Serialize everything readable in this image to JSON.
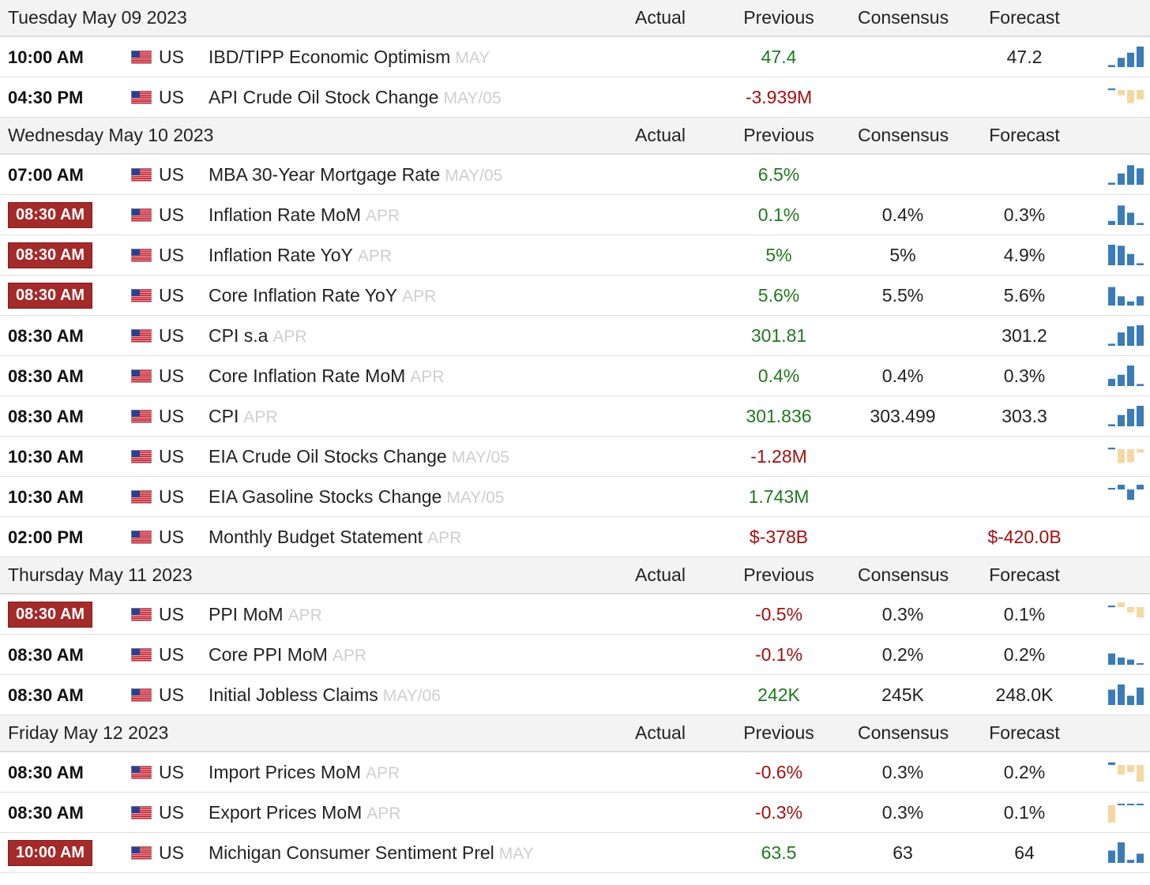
{
  "colors": {
    "positive": "#1f7a1f",
    "negative": "#a30f0f",
    "badge": "#a52a2a",
    "spark_blue": "#3a7bb8",
    "spark_tan": "#f5d7a3"
  },
  "sections": [
    {
      "date": "Tuesday May 09 2023",
      "headers": {
        "actual": "Actual",
        "previous": "Previous",
        "consensus": "Consensus",
        "forecast": "Forecast"
      },
      "rows": [
        {
          "time": "10:00 AM",
          "highlight": false,
          "country": "US",
          "event": "IBD/TIPP Economic Optimism",
          "ref": "MAY",
          "actual": "",
          "previous": "47.4",
          "previous_color": "positive",
          "consensus": "",
          "forecast": "47.2",
          "forecast_color": "",
          "spark": {
            "color": "blue",
            "bars": [
              0.1,
              0.45,
              0.7,
              1.0
            ]
          }
        },
        {
          "time": "04:30 PM",
          "highlight": false,
          "country": "US",
          "event": "API Crude Oil Stock Change",
          "ref": "MAY/05",
          "actual": "",
          "previous": "-3.939M",
          "previous_color": "negative",
          "consensus": "",
          "forecast": "",
          "forecast_color": "",
          "spark": {
            "color": "tan",
            "bars": [
              0.1,
              -0.3,
              -0.75,
              -0.55
            ]
          }
        }
      ]
    },
    {
      "date": "Wednesday May 10 2023",
      "headers": {
        "actual": "Actual",
        "previous": "Previous",
        "consensus": "Consensus",
        "forecast": "Forecast"
      },
      "rows": [
        {
          "time": "07:00 AM",
          "highlight": false,
          "country": "US",
          "event": "MBA 30-Year Mortgage Rate",
          "ref": "MAY/05",
          "actual": "",
          "previous": "6.5%",
          "previous_color": "positive",
          "consensus": "",
          "forecast": "",
          "forecast_color": "",
          "spark": {
            "color": "blue",
            "bars": [
              0.1,
              0.55,
              0.95,
              0.8
            ]
          }
        },
        {
          "time": "08:30 AM",
          "highlight": true,
          "country": "US",
          "event": "Inflation Rate MoM",
          "ref": "APR",
          "actual": "",
          "previous": "0.1%",
          "previous_color": "positive",
          "consensus": "0.4%",
          "forecast": "0.3%",
          "forecast_color": "",
          "spark": {
            "color": "blue",
            "bars": [
              0.2,
              0.95,
              0.6,
              0.1
            ]
          }
        },
        {
          "time": "08:30 AM",
          "highlight": true,
          "country": "US",
          "event": "Inflation Rate YoY",
          "ref": "APR",
          "actual": "",
          "previous": "5%",
          "previous_color": "positive",
          "consensus": "5%",
          "forecast": "4.9%",
          "forecast_color": "",
          "spark": {
            "color": "blue",
            "bars": [
              1.0,
              0.95,
              0.55,
              0.1
            ]
          }
        },
        {
          "time": "08:30 AM",
          "highlight": true,
          "country": "US",
          "event": "Core Inflation Rate YoY",
          "ref": "APR",
          "actual": "",
          "previous": "5.6%",
          "previous_color": "positive",
          "consensus": "5.5%",
          "forecast": "5.6%",
          "forecast_color": "",
          "spark": {
            "color": "blue",
            "bars": [
              0.9,
              0.45,
              0.2,
              0.45
            ]
          }
        },
        {
          "time": "08:30 AM",
          "highlight": false,
          "country": "US",
          "event": "CPI s.a",
          "ref": "APR",
          "actual": "",
          "previous": "301.81",
          "previous_color": "positive",
          "consensus": "",
          "forecast": "301.2",
          "forecast_color": "",
          "spark": {
            "color": "blue",
            "bars": [
              0.1,
              0.65,
              0.95,
              1.0
            ]
          }
        },
        {
          "time": "08:30 AM",
          "highlight": false,
          "country": "US",
          "event": "Core Inflation Rate MoM",
          "ref": "APR",
          "actual": "",
          "previous": "0.4%",
          "previous_color": "positive",
          "consensus": "0.4%",
          "forecast": "0.3%",
          "forecast_color": "",
          "spark": {
            "color": "blue",
            "bars": [
              0.35,
              0.55,
              1.0,
              0.1
            ]
          }
        },
        {
          "time": "08:30 AM",
          "highlight": false,
          "country": "US",
          "event": "CPI",
          "ref": "APR",
          "actual": "",
          "previous": "301.836",
          "previous_color": "positive",
          "consensus": "303.499",
          "forecast": "303.3",
          "forecast_color": "",
          "spark": {
            "color": "blue",
            "bars": [
              0.1,
              0.55,
              0.85,
              1.0
            ]
          }
        },
        {
          "time": "10:30 AM",
          "highlight": false,
          "country": "US",
          "event": "EIA Crude Oil Stocks Change",
          "ref": "MAY/05",
          "actual": "",
          "previous": "-1.28M",
          "previous_color": "negative",
          "consensus": "",
          "forecast": "",
          "forecast_color": "",
          "spark": {
            "color": "tan",
            "bars": [
              0.1,
              -0.8,
              -0.75,
              -0.2
            ]
          }
        },
        {
          "time": "10:30 AM",
          "highlight": false,
          "country": "US",
          "event": "EIA Gasoline Stocks Change",
          "ref": "MAY/05",
          "actual": "",
          "previous": "1.743M",
          "previous_color": "positive",
          "consensus": "",
          "forecast": "",
          "forecast_color": "",
          "spark": {
            "color": "blue",
            "bars": [
              0.1,
              0.3,
              -0.6,
              0.55
            ]
          }
        },
        {
          "time": "02:00 PM",
          "highlight": false,
          "country": "US",
          "event": "Monthly Budget Statement",
          "ref": "APR",
          "actual": "",
          "previous": "$-378B",
          "previous_color": "negative",
          "consensus": "",
          "forecast": "$-420.0B",
          "forecast_color": "negative",
          "spark": null
        }
      ]
    },
    {
      "date": "Thursday May 11 2023",
      "headers": {
        "actual": "Actual",
        "previous": "Previous",
        "consensus": "Consensus",
        "forecast": "Forecast"
      },
      "rows": [
        {
          "time": "08:30 AM",
          "highlight": true,
          "country": "US",
          "event": "PPI MoM",
          "ref": "APR",
          "actual": "",
          "previous": "-0.5%",
          "previous_color": "negative",
          "consensus": "0.3%",
          "forecast": "0.1%",
          "forecast_color": "",
          "spark": {
            "color": "tan",
            "bars": [
              0.1,
              0.4,
              -0.3,
              -0.6
            ]
          }
        },
        {
          "time": "08:30 AM",
          "highlight": false,
          "country": "US",
          "event": "Core PPI MoM",
          "ref": "APR",
          "actual": "",
          "previous": "-0.1%",
          "previous_color": "negative",
          "consensus": "0.2%",
          "forecast": "0.2%",
          "forecast_color": "",
          "spark": {
            "color": "blue",
            "bars": [
              0.55,
              0.35,
              0.25,
              0.05
            ]
          }
        },
        {
          "time": "08:30 AM",
          "highlight": false,
          "country": "US",
          "event": "Initial Jobless Claims",
          "ref": "MAY/06",
          "actual": "",
          "previous": "242K",
          "previous_color": "positive",
          "consensus": "245K",
          "forecast": "248.0K",
          "forecast_color": "",
          "spark": {
            "color": "blue",
            "bars": [
              0.75,
              1.0,
              0.45,
              0.85
            ]
          }
        }
      ]
    },
    {
      "date": "Friday May 12 2023",
      "headers": {
        "actual": "Actual",
        "previous": "Previous",
        "consensus": "Consensus",
        "forecast": "Forecast"
      },
      "rows": [
        {
          "time": "08:30 AM",
          "highlight": false,
          "country": "US",
          "event": "Import Prices MoM",
          "ref": "APR",
          "actual": "",
          "previous": "-0.6%",
          "previous_color": "negative",
          "consensus": "0.3%",
          "forecast": "0.2%",
          "forecast_color": "",
          "spark": {
            "color": "tan",
            "bars": [
              0.15,
              -0.55,
              -0.4,
              -0.95
            ]
          }
        },
        {
          "time": "08:30 AM",
          "highlight": false,
          "country": "US",
          "event": "Export Prices MoM",
          "ref": "APR",
          "actual": "",
          "previous": "-0.3%",
          "previous_color": "negative",
          "consensus": "0.3%",
          "forecast": "0.1%",
          "forecast_color": "",
          "spark": {
            "color": "tan",
            "bars": [
              -1.0,
              0.08,
              0.08,
              0.04
            ]
          }
        },
        {
          "time": "10:00 AM",
          "highlight": true,
          "country": "US",
          "event": "Michigan Consumer Sentiment Prel",
          "ref": "MAY",
          "actual": "",
          "previous": "63.5",
          "previous_color": "positive",
          "consensus": "63",
          "forecast": "64",
          "forecast_color": "",
          "spark": {
            "color": "blue",
            "bars": [
              0.6,
              1.0,
              0.15,
              0.45
            ]
          }
        }
      ]
    }
  ]
}
